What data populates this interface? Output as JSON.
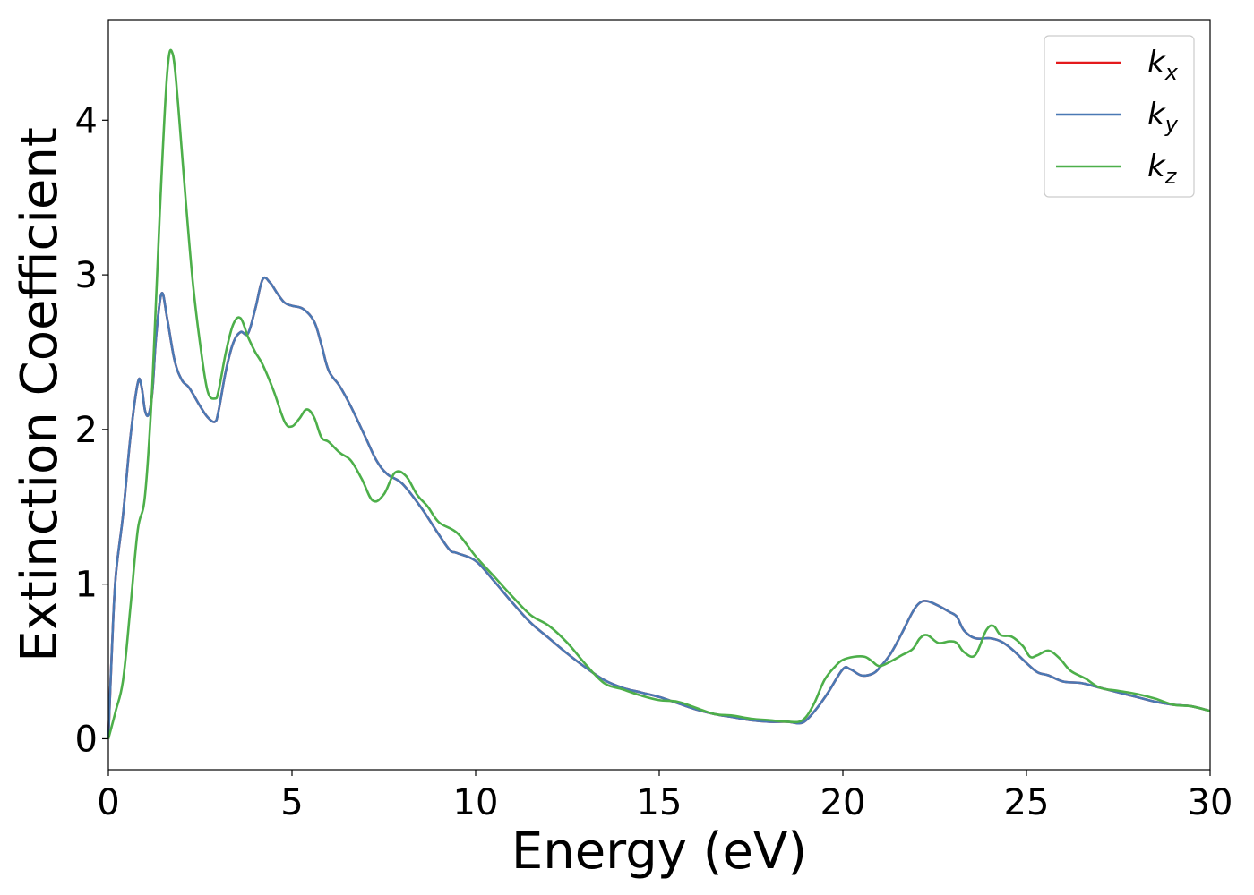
{
  "chart_data": {
    "type": "line",
    "xlabel": "Energy (eV)",
    "ylabel": "Extinction Coefficient",
    "xlim": [
      0,
      30
    ],
    "ylim": [
      -0.2,
      4.65
    ],
    "xticks": [
      0,
      5,
      10,
      15,
      20,
      25,
      30
    ],
    "yticks": [
      0,
      1,
      2,
      3,
      4
    ],
    "grid": false,
    "legend_position": "top-right",
    "series": [
      {
        "name": "k",
        "subscript": "x",
        "color": "#e41a1c",
        "x": [
          0,
          0.1,
          0.2,
          0.4,
          0.6,
          0.8,
          0.9,
          1.0,
          1.1,
          1.2,
          1.3,
          1.45,
          1.6,
          1.8,
          2.0,
          2.2,
          2.5,
          2.7,
          2.9,
          3.0,
          3.2,
          3.4,
          3.6,
          3.8,
          4.0,
          4.2,
          4.4,
          4.6,
          4.8,
          5.0,
          5.3,
          5.6,
          5.8,
          6.0,
          6.3,
          6.6,
          7.0,
          7.3,
          7.6,
          8.0,
          8.5,
          9.0,
          9.3,
          9.5,
          10.0,
          10.5,
          11.0,
          11.5,
          12.0,
          12.5,
          13.0,
          13.5,
          14.0,
          14.5,
          15.0,
          15.5,
          16.0,
          16.5,
          17.0,
          17.5,
          18.0,
          18.5,
          18.8,
          19.0,
          19.3,
          19.6,
          20.0,
          20.2,
          20.5,
          20.8,
          21.0,
          21.3,
          21.6,
          21.9,
          22.1,
          22.3,
          22.6,
          22.9,
          23.1,
          23.3,
          23.6,
          24.0,
          24.3,
          24.6,
          25.0,
          25.3,
          25.6,
          26.0,
          26.5,
          27.0,
          27.5,
          28.0,
          28.5,
          29.0,
          29.5,
          30.0
        ],
        "values": [
          0,
          0.6,
          1.05,
          1.45,
          1.95,
          2.3,
          2.28,
          2.12,
          2.1,
          2.25,
          2.6,
          2.88,
          2.72,
          2.45,
          2.32,
          2.27,
          2.15,
          2.08,
          2.05,
          2.12,
          2.38,
          2.56,
          2.63,
          2.62,
          2.78,
          2.97,
          2.95,
          2.88,
          2.82,
          2.8,
          2.78,
          2.7,
          2.55,
          2.38,
          2.28,
          2.15,
          1.95,
          1.8,
          1.71,
          1.65,
          1.5,
          1.32,
          1.22,
          1.2,
          1.15,
          1.02,
          0.88,
          0.75,
          0.65,
          0.55,
          0.46,
          0.38,
          0.33,
          0.3,
          0.27,
          0.23,
          0.19,
          0.16,
          0.14,
          0.12,
          0.11,
          0.11,
          0.1,
          0.12,
          0.2,
          0.3,
          0.45,
          0.45,
          0.41,
          0.42,
          0.46,
          0.55,
          0.68,
          0.82,
          0.88,
          0.89,
          0.86,
          0.82,
          0.79,
          0.7,
          0.65,
          0.65,
          0.63,
          0.58,
          0.49,
          0.43,
          0.41,
          0.37,
          0.36,
          0.33,
          0.3,
          0.27,
          0.24,
          0.22,
          0.21,
          0.18
        ]
      },
      {
        "name": "k",
        "subscript": "y",
        "color": "#4a79b4",
        "x": [
          0,
          0.1,
          0.2,
          0.4,
          0.6,
          0.8,
          0.9,
          1.0,
          1.1,
          1.2,
          1.3,
          1.45,
          1.6,
          1.8,
          2.0,
          2.2,
          2.5,
          2.7,
          2.9,
          3.0,
          3.2,
          3.4,
          3.6,
          3.8,
          4.0,
          4.2,
          4.4,
          4.6,
          4.8,
          5.0,
          5.3,
          5.6,
          5.8,
          6.0,
          6.3,
          6.6,
          7.0,
          7.3,
          7.6,
          8.0,
          8.5,
          9.0,
          9.3,
          9.5,
          10.0,
          10.5,
          11.0,
          11.5,
          12.0,
          12.5,
          13.0,
          13.5,
          14.0,
          14.5,
          15.0,
          15.5,
          16.0,
          16.5,
          17.0,
          17.5,
          18.0,
          18.5,
          18.8,
          19.0,
          19.3,
          19.6,
          20.0,
          20.2,
          20.5,
          20.8,
          21.0,
          21.3,
          21.6,
          21.9,
          22.1,
          22.3,
          22.6,
          22.9,
          23.1,
          23.3,
          23.6,
          24.0,
          24.3,
          24.6,
          25.0,
          25.3,
          25.6,
          26.0,
          26.5,
          27.0,
          27.5,
          28.0,
          28.5,
          29.0,
          29.5,
          30.0
        ],
        "values": [
          0,
          0.6,
          1.05,
          1.45,
          1.95,
          2.3,
          2.28,
          2.12,
          2.1,
          2.25,
          2.6,
          2.88,
          2.72,
          2.45,
          2.32,
          2.27,
          2.15,
          2.08,
          2.05,
          2.12,
          2.38,
          2.56,
          2.63,
          2.62,
          2.78,
          2.97,
          2.95,
          2.88,
          2.82,
          2.8,
          2.78,
          2.7,
          2.55,
          2.38,
          2.28,
          2.15,
          1.95,
          1.8,
          1.71,
          1.65,
          1.5,
          1.32,
          1.22,
          1.2,
          1.15,
          1.02,
          0.88,
          0.75,
          0.65,
          0.55,
          0.46,
          0.38,
          0.33,
          0.3,
          0.27,
          0.23,
          0.19,
          0.16,
          0.14,
          0.12,
          0.11,
          0.11,
          0.1,
          0.12,
          0.2,
          0.3,
          0.45,
          0.45,
          0.41,
          0.42,
          0.46,
          0.55,
          0.68,
          0.82,
          0.88,
          0.89,
          0.86,
          0.82,
          0.79,
          0.7,
          0.65,
          0.65,
          0.63,
          0.58,
          0.49,
          0.43,
          0.41,
          0.37,
          0.36,
          0.33,
          0.3,
          0.27,
          0.24,
          0.22,
          0.21,
          0.18
        ]
      },
      {
        "name": "k",
        "subscript": "z",
        "color": "#4daf4a",
        "x": [
          0,
          0.2,
          0.4,
          0.6,
          0.8,
          1.0,
          1.2,
          1.4,
          1.6,
          1.75,
          1.9,
          2.1,
          2.3,
          2.5,
          2.7,
          2.9,
          3.0,
          3.2,
          3.4,
          3.6,
          3.8,
          4.0,
          4.2,
          4.5,
          4.8,
          5.0,
          5.2,
          5.4,
          5.6,
          5.8,
          6.0,
          6.3,
          6.6,
          6.9,
          7.2,
          7.5,
          7.8,
          8.1,
          8.4,
          8.7,
          9.0,
          9.5,
          10.0,
          10.5,
          11.0,
          11.5,
          12.0,
          12.5,
          13.0,
          13.5,
          14.0,
          14.5,
          15.0,
          15.5,
          16.0,
          16.5,
          17.0,
          17.5,
          18.0,
          18.5,
          18.9,
          19.2,
          19.5,
          19.8,
          20.0,
          20.3,
          20.6,
          20.8,
          21.0,
          21.3,
          21.6,
          21.9,
          22.1,
          22.3,
          22.6,
          22.9,
          23.1,
          23.3,
          23.6,
          23.9,
          24.1,
          24.3,
          24.6,
          24.9,
          25.1,
          25.3,
          25.6,
          25.9,
          26.2,
          26.6,
          27.0,
          27.5,
          28.0,
          28.5,
          29.0,
          29.5,
          30.0
        ],
        "values": [
          0,
          0.18,
          0.38,
          0.85,
          1.35,
          1.58,
          2.3,
          3.4,
          4.3,
          4.43,
          4.1,
          3.5,
          2.95,
          2.55,
          2.25,
          2.2,
          2.25,
          2.5,
          2.68,
          2.72,
          2.6,
          2.5,
          2.42,
          2.25,
          2.05,
          2.02,
          2.07,
          2.13,
          2.08,
          1.95,
          1.92,
          1.85,
          1.8,
          1.68,
          1.54,
          1.58,
          1.72,
          1.7,
          1.58,
          1.5,
          1.4,
          1.33,
          1.18,
          1.05,
          0.92,
          0.8,
          0.73,
          0.62,
          0.48,
          0.36,
          0.32,
          0.28,
          0.25,
          0.24,
          0.2,
          0.16,
          0.15,
          0.13,
          0.12,
          0.11,
          0.12,
          0.22,
          0.38,
          0.47,
          0.51,
          0.53,
          0.53,
          0.5,
          0.47,
          0.5,
          0.54,
          0.58,
          0.65,
          0.67,
          0.62,
          0.63,
          0.62,
          0.56,
          0.54,
          0.7,
          0.73,
          0.67,
          0.66,
          0.6,
          0.53,
          0.54,
          0.57,
          0.52,
          0.44,
          0.39,
          0.33,
          0.31,
          0.29,
          0.26,
          0.22,
          0.21,
          0.18
        ]
      }
    ]
  }
}
